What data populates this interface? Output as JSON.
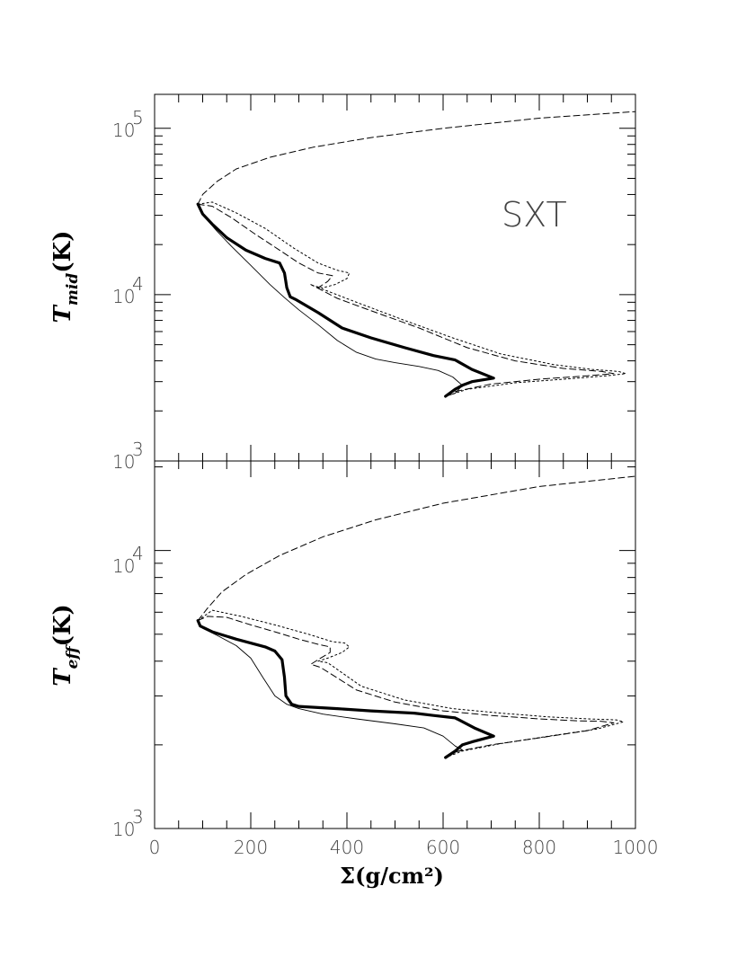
{
  "chart_data": [
    {
      "type": "line",
      "ylabel": "T_mid(K)",
      "ylabel_main": "T",
      "ylabel_sub": "mid",
      "ylabel_unit": "(K)",
      "yscale": "log",
      "ylim": [
        1000,
        160000
      ],
      "xlim": [
        0,
        1000
      ],
      "annotation": "SXT",
      "y_ticks": [
        {
          "value": 100000,
          "base": "10",
          "exp": "5"
        },
        {
          "value": 10000,
          "base": "10",
          "exp": "4"
        },
        {
          "value": 1000,
          "base": "10",
          "exp": "3"
        }
      ],
      "series": [
        {
          "style": "thin-solid",
          "points": [
            [
              90,
              35000
            ],
            [
              95,
              32000
            ],
            [
              110,
              28000
            ],
            [
              130,
              24000
            ],
            [
              160,
              19500
            ],
            [
              200,
              15000
            ],
            [
              240,
              11500
            ],
            [
              270,
              9600
            ],
            [
              300,
              8100
            ],
            [
              340,
              6600
            ],
            [
              380,
              5300
            ],
            [
              420,
              4500
            ],
            [
              460,
              4100
            ],
            [
              500,
              3900
            ],
            [
              550,
              3700
            ],
            [
              590,
              3500
            ],
            [
              620,
              3200
            ],
            [
              640,
              2850
            ],
            [
              625,
              2550
            ],
            [
              605,
              2450
            ]
          ]
        },
        {
          "style": "thick-solid",
          "points": [
            [
              90,
              35000
            ],
            [
              100,
              30500
            ],
            [
              120,
              26500
            ],
            [
              150,
              22000
            ],
            [
              190,
              18500
            ],
            [
              230,
              16500
            ],
            [
              260,
              15500
            ],
            [
              270,
              13500
            ],
            [
              275,
              11000
            ],
            [
              282,
              9700
            ],
            [
              295,
              9300
            ],
            [
              340,
              7800
            ],
            [
              390,
              6300
            ],
            [
              450,
              5500
            ],
            [
              520,
              4800
            ],
            [
              580,
              4300
            ],
            [
              625,
              4050
            ],
            [
              660,
              3550
            ],
            [
              705,
              3150
            ],
            [
              660,
              3000
            ],
            [
              640,
              2850
            ],
            [
              625,
              2700
            ],
            [
              605,
              2450
            ]
          ]
        },
        {
          "style": "dashed",
          "points": [
            [
              90,
              35000
            ],
            [
              100,
              40000
            ],
            [
              130,
              48000
            ],
            [
              170,
              57000
            ],
            [
              240,
              67000
            ],
            [
              330,
              77000
            ],
            [
              450,
              88000
            ],
            [
              600,
              100000
            ],
            [
              800,
              115000
            ],
            [
              1000,
              126000
            ]
          ]
        },
        {
          "style": "dashed",
          "points": [
            [
              90,
              35000
            ],
            [
              120,
              34000
            ],
            [
              160,
              29000
            ],
            [
              210,
              23000
            ],
            [
              260,
              18500
            ],
            [
              300,
              15500
            ],
            [
              340,
              13500
            ],
            [
              370,
              13000
            ],
            [
              360,
              12000
            ],
            [
              340,
              11000
            ],
            [
              325,
              11500
            ],
            [
              380,
              9500
            ],
            [
              450,
              8000
            ],
            [
              550,
              6300
            ],
            [
              650,
              4800
            ],
            [
              750,
              4000
            ],
            [
              850,
              3600
            ],
            [
              930,
              3450
            ],
            [
              955,
              3350
            ],
            [
              900,
              3250
            ],
            [
              800,
              3100
            ],
            [
              700,
              2900
            ],
            [
              620,
              2600
            ],
            [
              605,
              2450
            ]
          ]
        },
        {
          "style": "dotted",
          "points": [
            [
              90,
              35000
            ],
            [
              120,
              36000
            ],
            [
              170,
              31000
            ],
            [
              230,
              25000
            ],
            [
              290,
              19000
            ],
            [
              340,
              15500
            ],
            [
              380,
              14000
            ],
            [
              405,
              13500
            ],
            [
              400,
              12500
            ],
            [
              375,
              11500
            ],
            [
              350,
              11000
            ],
            [
              335,
              11200
            ],
            [
              420,
              9000
            ],
            [
              520,
              7000
            ],
            [
              620,
              5500
            ],
            [
              720,
              4400
            ],
            [
              830,
              3800
            ],
            [
              910,
              3550
            ],
            [
              965,
              3450
            ],
            [
              980,
              3350
            ],
            [
              940,
              3250
            ],
            [
              850,
              3100
            ],
            [
              750,
              2950
            ],
            [
              650,
              2700
            ],
            [
              605,
              2450
            ]
          ]
        }
      ]
    },
    {
      "type": "line",
      "ylabel": "T_eff(K)",
      "ylabel_main": "T",
      "ylabel_sub": "eff",
      "ylabel_unit": "(K)",
      "xlabel": "Σ(g/cm²)",
      "yscale": "log",
      "ylim": [
        1000,
        21000
      ],
      "xlim": [
        0,
        1000
      ],
      "x_ticks": [
        "0",
        "200",
        "400",
        "600",
        "800",
        "1000"
      ],
      "y_ticks": [
        {
          "value": 10000,
          "base": "10",
          "exp": "4"
        },
        {
          "value": 1000,
          "base": "10",
          "exp": "3"
        }
      ],
      "series": [
        {
          "style": "thin-solid",
          "points": [
            [
              90,
              5600
            ],
            [
              100,
              5250
            ],
            [
              130,
              4950
            ],
            [
              170,
              4550
            ],
            [
              200,
              4100
            ],
            [
              225,
              3500
            ],
            [
              250,
              3000
            ],
            [
              275,
              2800
            ],
            [
              300,
              2700
            ],
            [
              350,
              2580
            ],
            [
              420,
              2480
            ],
            [
              500,
              2380
            ],
            [
              560,
              2300
            ],
            [
              600,
              2150
            ],
            [
              625,
              1980
            ],
            [
              640,
              1920
            ],
            [
              625,
              1880
            ],
            [
              605,
              1800
            ]
          ]
        },
        {
          "style": "thick-solid",
          "points": [
            [
              90,
              5600
            ],
            [
              95,
              5350
            ],
            [
              120,
              5100
            ],
            [
              170,
              4800
            ],
            [
              230,
              4500
            ],
            [
              250,
              4350
            ],
            [
              265,
              4050
            ],
            [
              270,
              3500
            ],
            [
              273,
              3000
            ],
            [
              285,
              2800
            ],
            [
              300,
              2750
            ],
            [
              380,
              2700
            ],
            [
              450,
              2650
            ],
            [
              540,
              2600
            ],
            [
              580,
              2550
            ],
            [
              625,
              2500
            ],
            [
              665,
              2300
            ],
            [
              705,
              2150
            ],
            [
              660,
              2050
            ],
            [
              640,
              2000
            ],
            [
              625,
              1900
            ],
            [
              605,
              1800
            ]
          ]
        },
        {
          "style": "dashed",
          "points": [
            [
              90,
              5600
            ],
            [
              110,
              6200
            ],
            [
              140,
              7100
            ],
            [
              190,
              8200
            ],
            [
              260,
              9600
            ],
            [
              350,
              11200
            ],
            [
              460,
              12900
            ],
            [
              600,
              14800
            ],
            [
              800,
              17000
            ],
            [
              1000,
              18500
            ]
          ]
        },
        {
          "style": "dashed",
          "points": [
            [
              90,
              5600
            ],
            [
              110,
              5800
            ],
            [
              150,
              5750
            ],
            [
              200,
              5400
            ],
            [
              250,
              5100
            ],
            [
              300,
              4800
            ],
            [
              340,
              4600
            ],
            [
              365,
              4500
            ],
            [
              365,
              4300
            ],
            [
              345,
              4100
            ],
            [
              325,
              3900
            ],
            [
              345,
              3800
            ],
            [
              420,
              3150
            ],
            [
              500,
              2850
            ],
            [
              600,
              2650
            ],
            [
              700,
              2550
            ],
            [
              800,
              2480
            ],
            [
              880,
              2440
            ],
            [
              930,
              2430
            ],
            [
              955,
              2400
            ],
            [
              900,
              2250
            ],
            [
              800,
              2120
            ],
            [
              700,
              2000
            ],
            [
              620,
              1880
            ],
            [
              605,
              1800
            ]
          ]
        },
        {
          "style": "dotted",
          "points": [
            [
              90,
              5600
            ],
            [
              120,
              6100
            ],
            [
              180,
              5800
            ],
            [
              250,
              5400
            ],
            [
              320,
              5000
            ],
            [
              370,
              4700
            ],
            [
              395,
              4650
            ],
            [
              405,
              4500
            ],
            [
              390,
              4300
            ],
            [
              360,
              4100
            ],
            [
              340,
              4000
            ],
            [
              360,
              3950
            ],
            [
              430,
              3250
            ],
            [
              520,
              2900
            ],
            [
              620,
              2700
            ],
            [
              720,
              2600
            ],
            [
              820,
              2520
            ],
            [
              900,
              2480
            ],
            [
              960,
              2460
            ],
            [
              975,
              2420
            ],
            [
              920,
              2280
            ],
            [
              820,
              2150
            ],
            [
              720,
              2020
            ],
            [
              640,
              1900
            ],
            [
              605,
              1800
            ]
          ]
        }
      ]
    }
  ]
}
